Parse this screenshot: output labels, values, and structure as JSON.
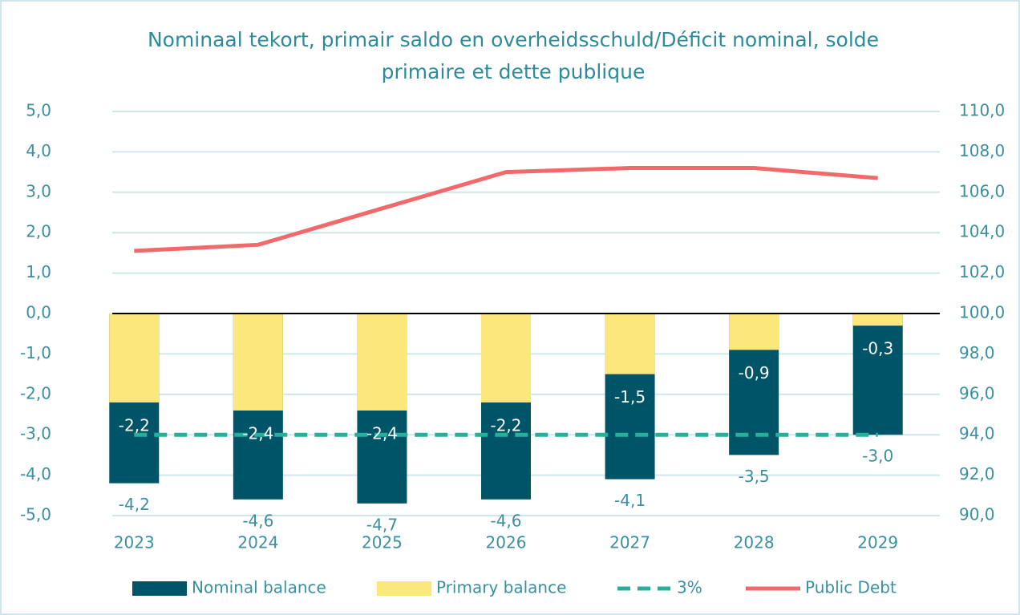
{
  "chart_data": {
    "type": "bar",
    "title": "Nominaal tekort, primair saldo en overheidsschuld/Déficit nominal, solde primaire et dette publique",
    "categories": [
      "2023",
      "2024",
      "2025",
      "2026",
      "2027",
      "2028",
      "2029"
    ],
    "series": [
      {
        "name": "Nominal balance",
        "type": "bar",
        "color": "#005468",
        "values": [
          -4.2,
          -4.6,
          -4.7,
          -4.6,
          -4.1,
          -3.5,
          -3.0
        ],
        "value_labels": [
          "-4,2",
          "-4,6",
          "-4,7",
          "-4,6",
          "-4,1",
          "-3,5",
          "-3,0"
        ]
      },
      {
        "name": "Primary balance",
        "type": "bar",
        "color": "#fbe77a",
        "values": [
          -2.2,
          -2.4,
          -2.4,
          -2.2,
          -1.5,
          -0.9,
          -0.3
        ],
        "value_labels": [
          "-2,2",
          "-2,4",
          "-2,4",
          "-2,2",
          "-1,5",
          "-0,9",
          "-0,3"
        ]
      },
      {
        "name": "3%",
        "type": "line",
        "dashed": true,
        "color": "#26b09c",
        "values": [
          -3,
          -3,
          -3,
          -3,
          -3,
          -3,
          -3
        ]
      },
      {
        "name": "Public Debt",
        "type": "line",
        "axis": "y2",
        "color": "#f2696b",
        "values": [
          103.1,
          103.4,
          105.2,
          107.0,
          107.2,
          107.2,
          106.7
        ]
      }
    ],
    "ylim": [
      -5,
      5
    ],
    "yticks": [
      {
        "value": -5,
        "label": "-5,0"
      },
      {
        "value": -4,
        "label": "-4,0"
      },
      {
        "value": -3,
        "label": "-3,0"
      },
      {
        "value": -2,
        "label": "-2,0"
      },
      {
        "value": -1,
        "label": "-1,0"
      },
      {
        "value": 0,
        "label": "0,0"
      },
      {
        "value": 1,
        "label": "1,0"
      },
      {
        "value": 2,
        "label": "2,0"
      },
      {
        "value": 3,
        "label": "3,0"
      },
      {
        "value": 4,
        "label": "4,0"
      },
      {
        "value": 5,
        "label": "5,0"
      }
    ],
    "y2lim": [
      90,
      110
    ],
    "y2ticks": [
      {
        "value": 90,
        "label": "90,0"
      },
      {
        "value": 92,
        "label": "92,0"
      },
      {
        "value": 94,
        "label": "94,0"
      },
      {
        "value": 96,
        "label": "96,0"
      },
      {
        "value": 98,
        "label": "98,0"
      },
      {
        "value": 100,
        "label": "100,0"
      },
      {
        "value": 102,
        "label": "102,0"
      },
      {
        "value": 104,
        "label": "104,0"
      },
      {
        "value": 106,
        "label": "106,0"
      },
      {
        "value": 108,
        "label": "108,0"
      },
      {
        "value": 110,
        "label": "110,0"
      }
    ],
    "grid": true,
    "legend": "bottom"
  }
}
